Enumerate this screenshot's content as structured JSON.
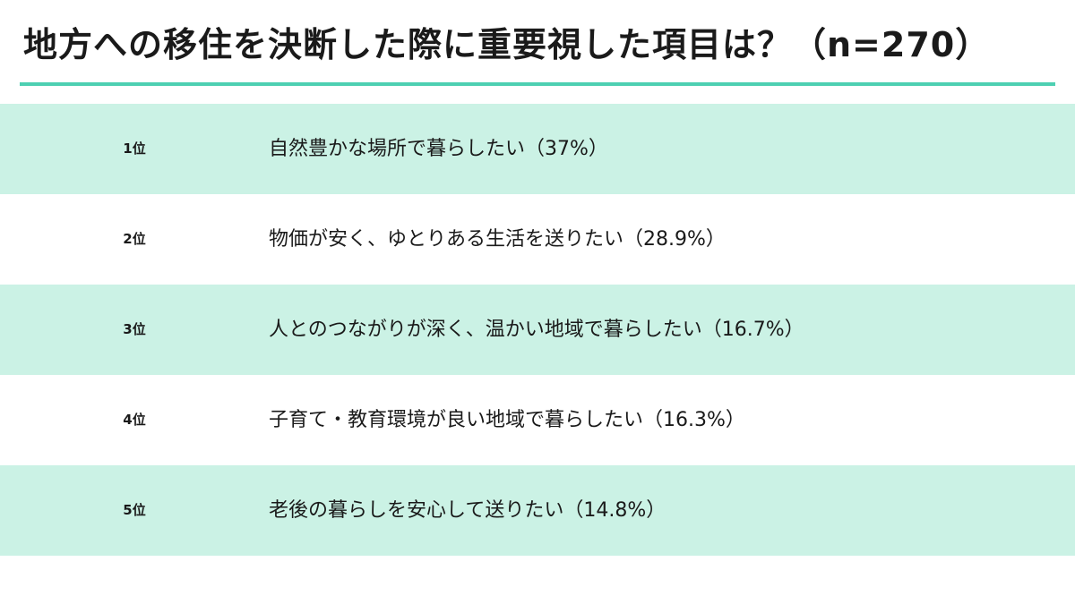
{
  "title": "地方への移住を決断した際に重要視した項目は？（n=270）",
  "colors": {
    "accent_rule": "#4dd0b2",
    "row_shade": "#cbf2e5",
    "row_plain": "#ffffff"
  },
  "chart_data": {
    "type": "table",
    "title": "地方への移住を決断した際に重要視した項目は？（n=270）",
    "n": 270,
    "unit": "%",
    "rows": [
      {
        "rank": "1位",
        "item": "自然豊かな場所で暮らしたい（37%）",
        "value": 37
      },
      {
        "rank": "2位",
        "item": "物価が安く、ゆとりある生活を送りたい（28.9%）",
        "value": 28.9
      },
      {
        "rank": "3位",
        "item": "人とのつながりが深く、温かい地域で暮らしたい（16.7%）",
        "value": 16.7
      },
      {
        "rank": "4位",
        "item": "子育て・教育環境が良い地域で暮らしたい（16.3%）",
        "value": 16.3
      },
      {
        "rank": "5位",
        "item": "老後の暮らしを安心して送りたい（14.8%）",
        "value": 14.8
      }
    ]
  }
}
